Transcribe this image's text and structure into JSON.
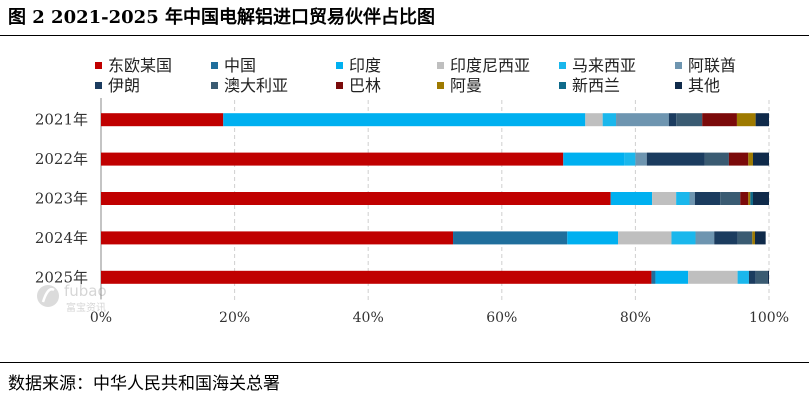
{
  "title": "图 2 2021-2025 年中国电解铝进口贸易伙伴占比图",
  "source": "数据来源：中华人民共和国海关总署",
  "watermark": {
    "brand": "fubao",
    "sub": "富宝资讯"
  },
  "chart_data": {
    "type": "bar",
    "orientation": "horizontal",
    "stacked": "percent",
    "categories": [
      "2021年",
      "2022年",
      "2023年",
      "2024年",
      "2025年"
    ],
    "xlim": [
      0,
      100
    ],
    "xticks": [
      "0%",
      "20%",
      "40%",
      "60%",
      "80%",
      "100%"
    ],
    "series": [
      {
        "name": "东欧某国",
        "color": "#c00000",
        "values": [
          18.3,
          69.2,
          76.3,
          52.7,
          82.4
        ]
      },
      {
        "name": "中国",
        "color": "#1f6e9c",
        "values": [
          0.0,
          0.0,
          0.0,
          17.1,
          0.6
        ]
      },
      {
        "name": "印度",
        "color": "#00b0f0",
        "values": [
          54.2,
          9.2,
          6.2,
          7.6,
          4.9
        ]
      },
      {
        "name": "印度尼西亚",
        "color": "#bfbfbf",
        "values": [
          2.6,
          0.0,
          3.6,
          8.0,
          7.4
        ]
      },
      {
        "name": "马来西亚",
        "color": "#1ab7ec",
        "values": [
          2.0,
          1.6,
          2.0,
          3.6,
          1.7
        ]
      },
      {
        "name": "阿联酋",
        "color": "#6e95b0",
        "values": [
          7.9,
          1.7,
          0.8,
          2.8,
          0.0
        ]
      },
      {
        "name": "伊朗",
        "color": "#1b3c5f",
        "values": [
          1.1,
          8.7,
          3.8,
          3.5,
          1.0
        ]
      },
      {
        "name": "澳大利亚",
        "color": "#3a5b72",
        "values": [
          3.9,
          3.6,
          3.0,
          2.2,
          1.8
        ]
      },
      {
        "name": "巴林",
        "color": "#7b0a0a",
        "values": [
          5.2,
          2.9,
          1.2,
          0.0,
          0.0
        ]
      },
      {
        "name": "阿曼",
        "color": "#9e7a00",
        "values": [
          2.8,
          0.7,
          0.3,
          0.4,
          0.0
        ]
      },
      {
        "name": "新西兰",
        "color": "#0e6a8a",
        "values": [
          0.0,
          0.0,
          0.4,
          0.0,
          0.0
        ]
      },
      {
        "name": "其他",
        "color": "#0f2a4a",
        "values": [
          2.0,
          2.4,
          2.4,
          1.6,
          0.2
        ]
      }
    ]
  }
}
